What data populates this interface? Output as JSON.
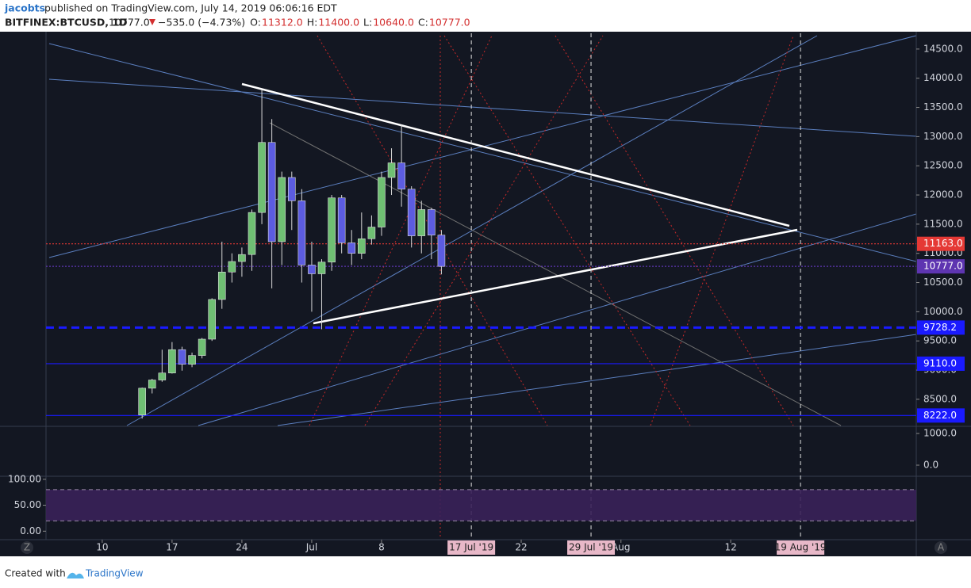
{
  "header": {
    "author": "jacobts",
    "published": "published on TradingView.com, July 14, 2019 06:06:16 EDT",
    "symbol": "BITFINEX:BTCUSD, 1D",
    "last": "10777.0",
    "change": "−535.0 (−4.73%)",
    "ohlc": [
      {
        "label": "O:",
        "value": "11312.0"
      },
      {
        "label": "H:",
        "value": "11400.0"
      },
      {
        "label": "L:",
        "value": "10640.0"
      },
      {
        "label": "C:",
        "value": "10777.0"
      }
    ]
  },
  "chart_data": {
    "type": "candlestick",
    "x": [
      "2019-06-14",
      "2019-06-15",
      "2019-06-16",
      "2019-06-17",
      "2019-06-18",
      "2019-06-19",
      "2019-06-20",
      "2019-06-21",
      "2019-06-22",
      "2019-06-23",
      "2019-06-24",
      "2019-06-25",
      "2019-06-26",
      "2019-06-27",
      "2019-06-28",
      "2019-06-29",
      "2019-06-30",
      "2019-07-01",
      "2019-07-02",
      "2019-07-03",
      "2019-07-04",
      "2019-07-05",
      "2019-07-06",
      "2019-07-07",
      "2019-07-08",
      "2019-07-09",
      "2019-07-10",
      "2019-07-11",
      "2019-07-12",
      "2019-07-13",
      "2019-07-14"
    ],
    "open": [
      8230,
      8690,
      8830,
      8950,
      9350,
      9100,
      9250,
      9530,
      10210,
      10680,
      10860,
      10980,
      11700,
      12900,
      11200,
      12300,
      11900,
      10800,
      10650,
      10850,
      11950,
      11180,
      11000,
      11250,
      11450,
      12300,
      12550,
      12100,
      11300,
      11750,
      11312
    ],
    "high": [
      8700,
      8850,
      9350,
      9480,
      9400,
      9300,
      9550,
      10230,
      11200,
      11000,
      11100,
      11750,
      13800,
      13300,
      12400,
      12400,
      12100,
      11200,
      10900,
      12000,
      12000,
      11400,
      11700,
      11650,
      12400,
      12800,
      13200,
      12150,
      11900,
      11780,
      11400
    ],
    "low": [
      8170,
      8600,
      8800,
      8940,
      8990,
      9050,
      9200,
      9500,
      10050,
      10500,
      10600,
      10700,
      11500,
      10400,
      10800,
      11400,
      10500,
      10000,
      9700,
      10700,
      11000,
      10800,
      10900,
      11150,
      11300,
      12000,
      11800,
      11100,
      11000,
      10900,
      10640
    ],
    "close": [
      8690,
      8830,
      8950,
      9350,
      9100,
      9250,
      9530,
      10210,
      10680,
      10860,
      10980,
      11700,
      12900,
      11200,
      12300,
      11900,
      10800,
      10650,
      10850,
      11950,
      11180,
      11000,
      11250,
      11450,
      12300,
      12550,
      12100,
      11300,
      11750,
      11312,
      10777
    ],
    "colors": {
      "up": "#6fbf73",
      "down": "#5c5ce0",
      "wick": "#d8d8d8"
    },
    "xlim": [
      "2019-06-05",
      "2019-08-31"
    ],
    "xticks": [
      {
        "value": "2019-06-10",
        "label": "10"
      },
      {
        "value": "2019-06-17",
        "label": "17"
      },
      {
        "value": "2019-06-24",
        "label": "24"
      },
      {
        "value": "2019-07-01",
        "label": "Jul"
      },
      {
        "value": "2019-07-08",
        "label": "8"
      },
      {
        "value": "2019-07-22",
        "label": "22"
      },
      {
        "value": "2019-08-01",
        "label": "Aug"
      },
      {
        "value": "2019-08-12",
        "label": "12"
      }
    ],
    "ylim": [
      8050,
      14770
    ],
    "yticks": [
      {
        "value": 8500,
        "label": "8500.0"
      },
      {
        "value": 9000,
        "label": "9000.0"
      },
      {
        "value": 9500,
        "label": "9500.0"
      },
      {
        "value": 10000,
        "label": "10000.0"
      },
      {
        "value": 10500,
        "label": "10500.0"
      },
      {
        "value": 11000,
        "label": "11000.0"
      },
      {
        "value": 11500,
        "label": "11500.0"
      },
      {
        "value": 12000,
        "label": "12000.0"
      },
      {
        "value": 12500,
        "label": "12500.0"
      },
      {
        "value": 13000,
        "label": "13000.0"
      },
      {
        "value": 13500,
        "label": "13500.0"
      },
      {
        "value": 14000,
        "label": "14000.0"
      },
      {
        "value": 14500,
        "label": "14500.0"
      }
    ],
    "price_lines": [
      {
        "value": 11163,
        "label": "11163.0",
        "color": "#e53935",
        "style": "dotted"
      },
      {
        "value": 10777,
        "label": "10777.0",
        "color": "#5e35b1",
        "style": "dotted"
      },
      {
        "value": 9728.2,
        "label": "9728.2",
        "color": "#1a1aff",
        "style": "dashed"
      },
      {
        "value": 9110,
        "label": "9110.0",
        "color": "#1a1aff",
        "style": "solid"
      },
      {
        "value": 8222,
        "label": "8222.0",
        "color": "#1a1aff",
        "style": "solid"
      }
    ],
    "events": [
      {
        "value": "2019-07-17",
        "label": "17 Jul '19"
      },
      {
        "value": "2019-07-29",
        "label": "29 Jul '19"
      },
      {
        "value": "2019-08-19",
        "label": "19 Aug '19"
      }
    ]
  },
  "macd": {
    "ylim": [
      -325,
      1175
    ],
    "yticks": [
      {
        "value": 1000,
        "label": "1000.0"
      },
      {
        "value": 0,
        "label": "0.0"
      }
    ]
  },
  "stoch": {
    "ylim": [
      -14.8,
      104.3
    ],
    "yticks": [
      {
        "value": 100,
        "label": "100.00"
      },
      {
        "value": 50,
        "label": "50.00"
      },
      {
        "value": 0,
        "label": "0.00"
      }
    ],
    "band": [
      20,
      80
    ]
  },
  "buttons": [
    "Z",
    "A"
  ],
  "footer": {
    "created": "Created with",
    "brand": "TradingView"
  }
}
